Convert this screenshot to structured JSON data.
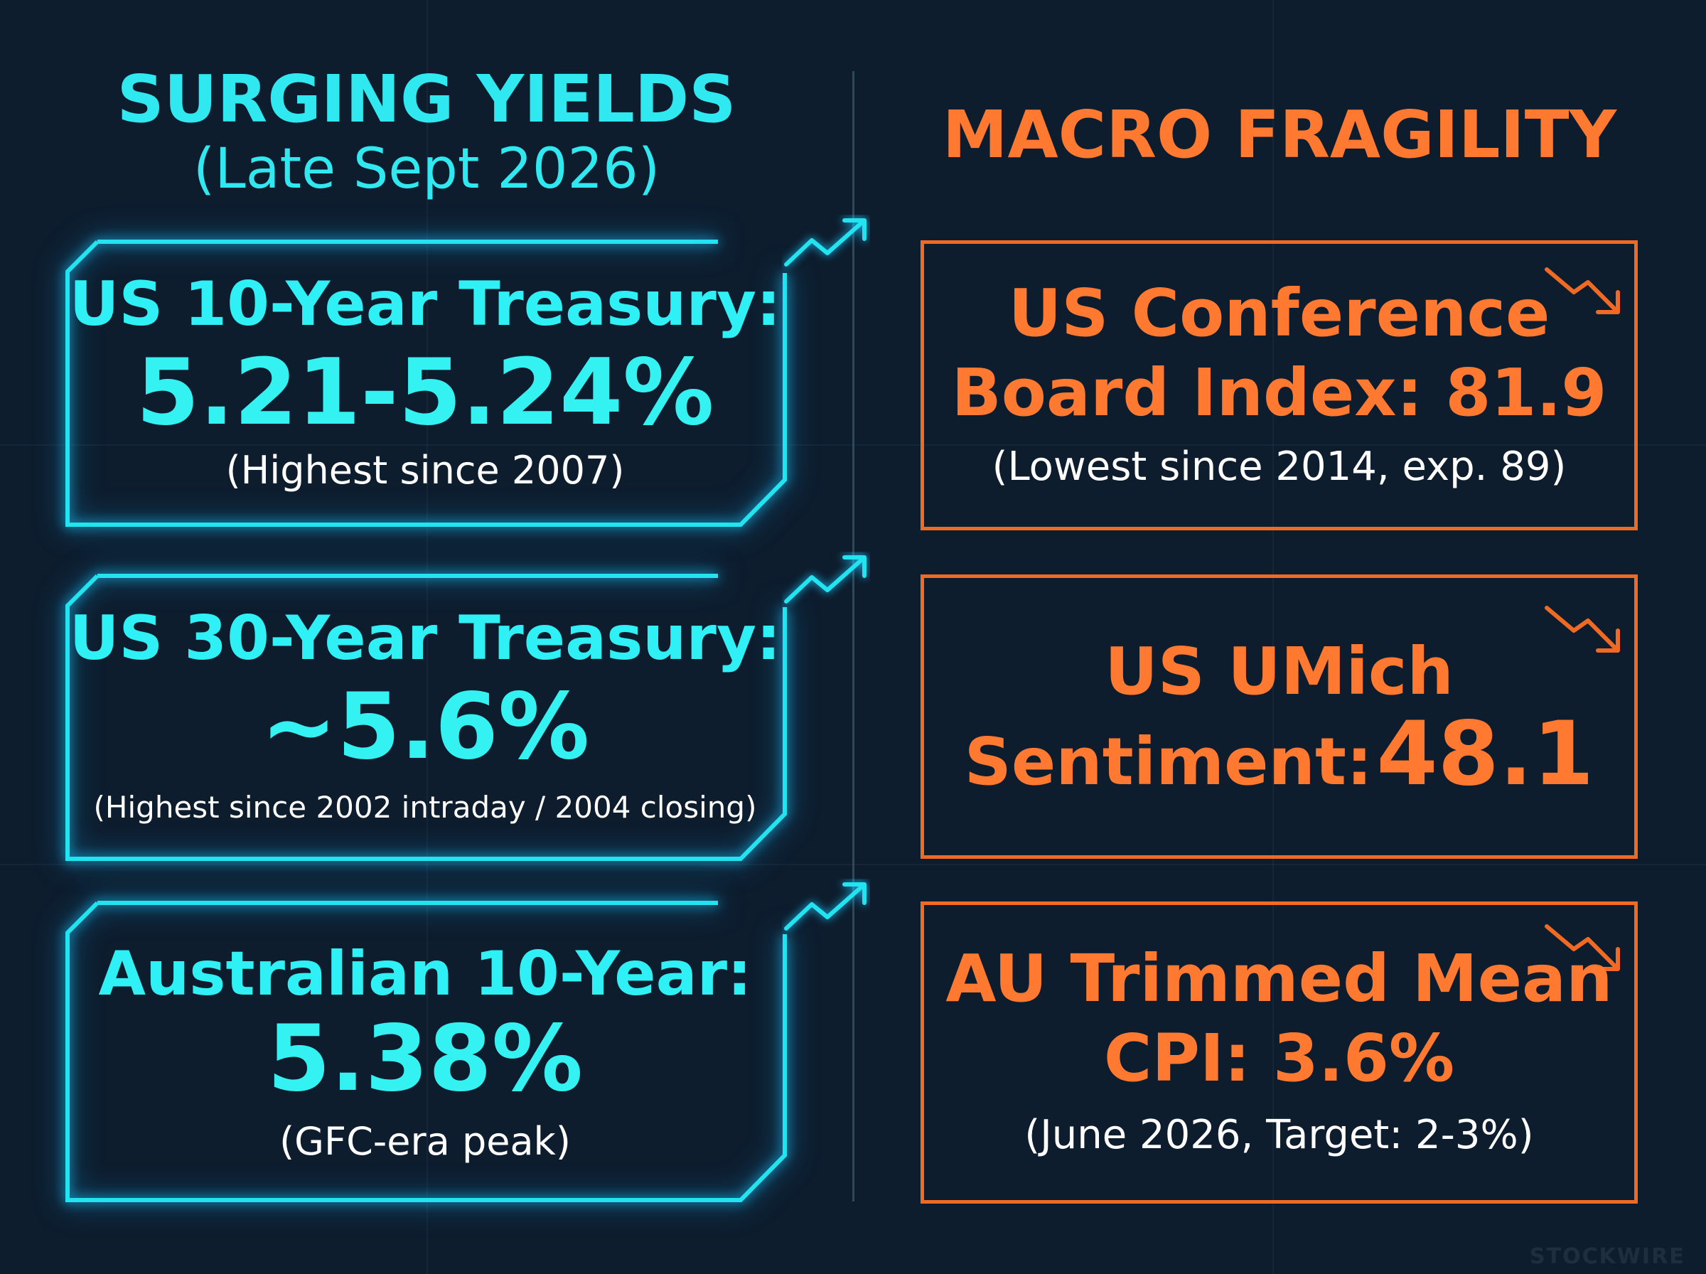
{
  "left": {
    "heading": "SURGING YIELDS",
    "subheading": "(Late Sept 2026)",
    "cards": [
      {
        "title": "US 10-Year Treasury:",
        "value": "5.21-5.24%",
        "note": "(Highest since 2007)",
        "icon": "trend-up-icon"
      },
      {
        "title": "US 30-Year Treasury:",
        "value": "~5.6%",
        "note": "(Highest since 2002 intraday / 2004 closing)",
        "icon": "trend-up-icon"
      },
      {
        "title": "Australian 10-Year:",
        "value": "5.38%",
        "note": "(GFC-era peak)",
        "icon": "trend-up-icon"
      }
    ]
  },
  "right": {
    "heading": "MACRO FRAGILITY",
    "cards": [
      {
        "title_line1": "US Conference",
        "title_line2": "Board Index: 81.9",
        "note": "(Lowest since 2014, exp. 89)",
        "icon": "trend-down-icon"
      },
      {
        "title_line1": "US UMich",
        "title_line2_label": "Sentiment:",
        "title_line2_value": "48.1",
        "icon": "trend-down-icon"
      },
      {
        "title_line1": "AU Trimmed Mean",
        "title_line2": "CPI: 3.6%",
        "note": "(June 2026, Target: 2-3%)",
        "icon": "trend-down-icon"
      }
    ]
  },
  "watermark": "STOCKWIRE",
  "colors": {
    "background": "#0d1d2e",
    "cyan": "#22e3f0",
    "orange": "#f06a24",
    "note_text": "#ffffff"
  }
}
